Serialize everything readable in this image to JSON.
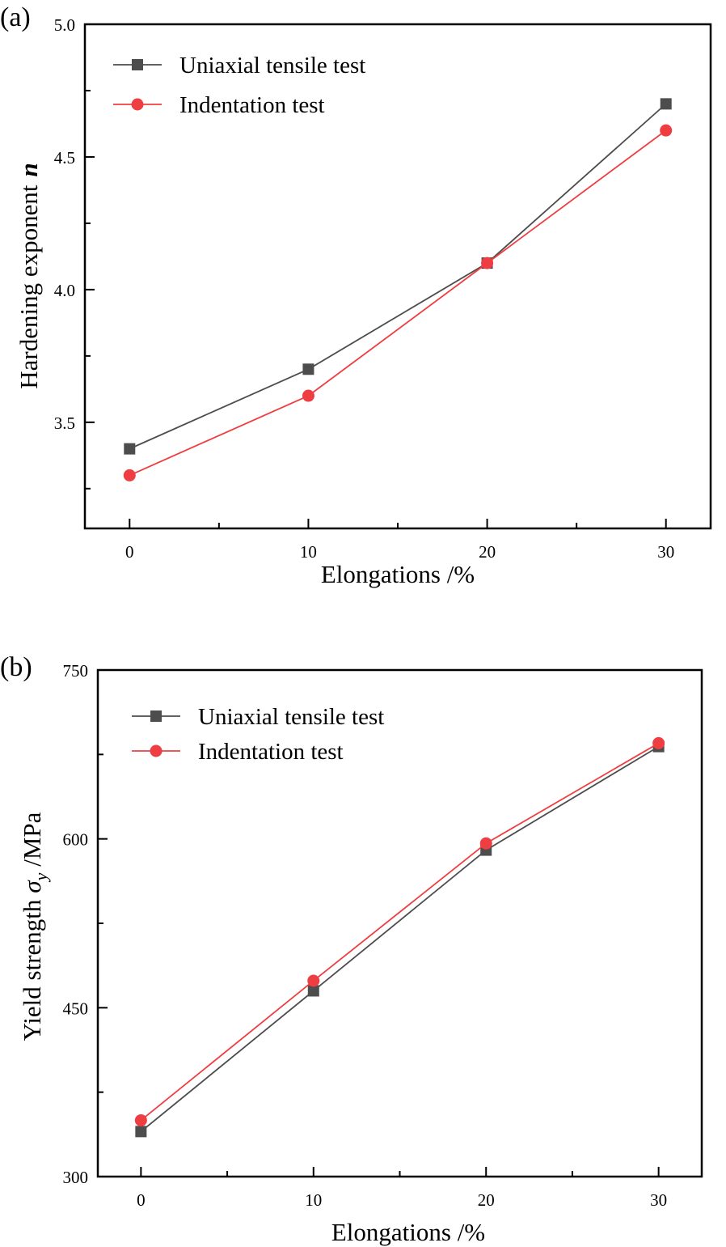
{
  "chart_data": [
    {
      "type": "line",
      "panel_label": "(a)",
      "title": "",
      "xlabel": "Elongations /%",
      "ylabel": "Hardening exponent",
      "ylabel_symbol": "n",
      "x": [
        0,
        10,
        20,
        30
      ],
      "xlim": [
        -2.5,
        32.5
      ],
      "ylim": [
        3.1,
        5.0
      ],
      "xticks": [
        0,
        10,
        20,
        30
      ],
      "xtick_labels": [
        "0",
        "10",
        "20",
        "30"
      ],
      "xminor": [
        5,
        15,
        25
      ],
      "yticks": [
        3.5,
        4.0,
        4.5,
        5.0
      ],
      "ytick_labels": [
        "3.5",
        "4.0",
        "4.5",
        "5.0"
      ],
      "yminor": [
        3.25,
        3.75,
        4.25,
        4.75
      ],
      "grid": false,
      "legend_position": "top-left",
      "series": [
        {
          "name": "Uniaxial tensile test",
          "marker": "square",
          "color": "#4d4d4d",
          "values": [
            3.4,
            3.7,
            4.1,
            4.7
          ]
        },
        {
          "name": "Indentation test",
          "marker": "circle",
          "color": "#ef3e42",
          "values": [
            3.3,
            3.6,
            4.1,
            4.6
          ]
        }
      ]
    },
    {
      "type": "line",
      "panel_label": "(b)",
      "title": "",
      "xlabel": "Elongations /%",
      "ylabel": "Yield strength",
      "ylabel_symbol": "σ",
      "ylabel_subscript": "y",
      "ylabel_unit": " /MPa",
      "x": [
        0,
        10,
        20,
        30
      ],
      "xlim": [
        -2.5,
        32.5
      ],
      "ylim": [
        300,
        750
      ],
      "xticks": [
        0,
        10,
        20,
        30
      ],
      "xtick_labels": [
        "0",
        "10",
        "20",
        "30"
      ],
      "xminor": [
        5,
        15,
        25
      ],
      "yticks": [
        300,
        450,
        600,
        750
      ],
      "ytick_labels": [
        "300",
        "450",
        "600",
        "750"
      ],
      "yminor": [
        375,
        525,
        675
      ],
      "grid": false,
      "legend_position": "top-left",
      "series": [
        {
          "name": "Uniaxial tensile test",
          "marker": "square",
          "color": "#4d4d4d",
          "values": [
            340,
            465,
            590,
            682
          ]
        },
        {
          "name": "Indentation test",
          "marker": "circle",
          "color": "#ef3e42",
          "values": [
            350,
            474,
            596,
            685
          ]
        }
      ]
    }
  ]
}
